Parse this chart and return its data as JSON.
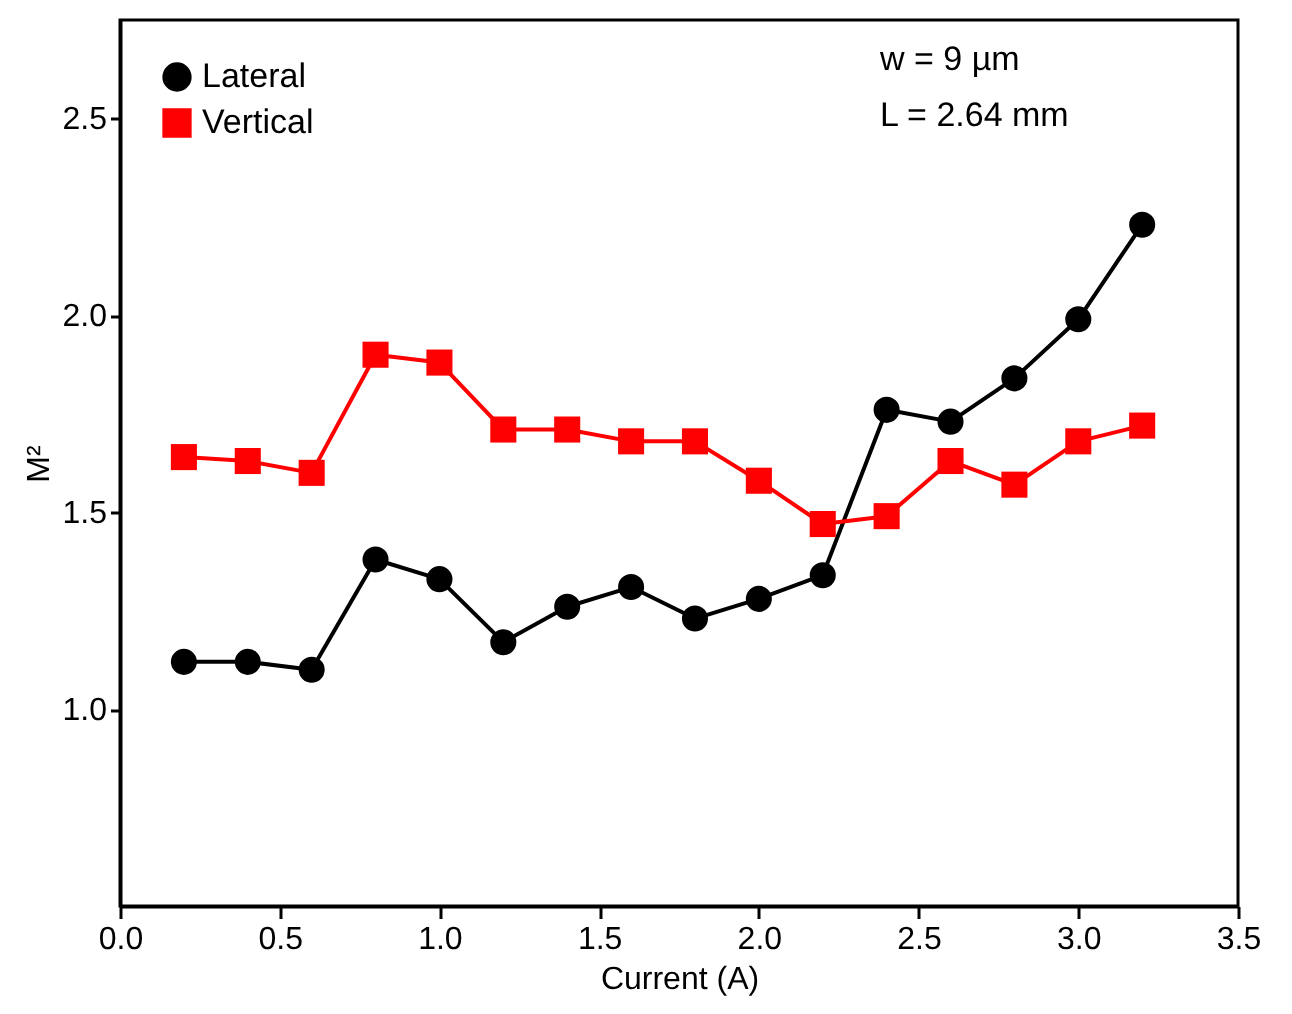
{
  "chart_data": {
    "type": "line",
    "xlabel": "Current (A)",
    "ylabel": "M²",
    "x": [
      0.2,
      0.4,
      0.6,
      0.8,
      1.0,
      1.2,
      1.4,
      1.6,
      1.8,
      2.0,
      2.2,
      2.4,
      2.6,
      2.8,
      3.0,
      3.2
    ],
    "series": [
      {
        "name": "Lateral",
        "color": "#000000",
        "marker": "circle",
        "values": [
          1.12,
          1.12,
          1.1,
          1.38,
          1.33,
          1.17,
          1.26,
          1.31,
          1.23,
          1.28,
          1.34,
          1.76,
          1.73,
          1.84,
          1.99,
          2.23
        ]
      },
      {
        "name": "Vertical",
        "color": "#ff0000",
        "marker": "square",
        "values": [
          1.64,
          1.63,
          1.6,
          1.9,
          1.88,
          1.71,
          1.71,
          1.68,
          1.68,
          1.58,
          1.47,
          1.49,
          1.63,
          1.57,
          1.68,
          1.72
        ]
      }
    ],
    "xlim": [
      0,
      3.5
    ],
    "xticks": [
      {
        "value": 0,
        "label": "0.0"
      },
      0.5,
      {
        "value": 1,
        "label": "1.0"
      },
      1.5,
      {
        "value": 2,
        "label": "2.0"
      },
      2.5,
      {
        "value": 3,
        "label": "3.0"
      },
      3.5
    ],
    "ylim": [
      0.5,
      2.75
    ],
    "yticks": [
      {
        "value": 1,
        "label": "1.0"
      },
      1.5,
      {
        "value": 2,
        "label": "2.0"
      },
      2.5
    ],
    "annotations": [
      "w = 9 µm",
      "L = 2.64 mm"
    ],
    "legend": "top left",
    "grid": false,
    "line_style": "solid"
  }
}
